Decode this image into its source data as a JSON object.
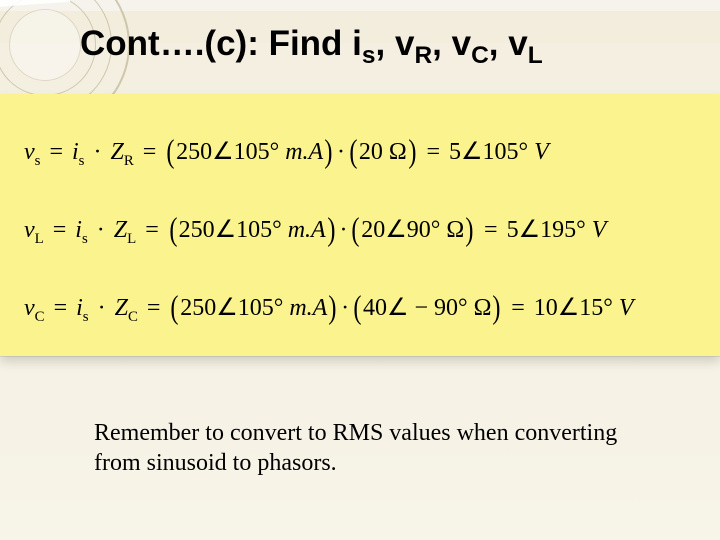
{
  "slide": {
    "background_top": "#f6f3ec",
    "background_bottom": "#f7f4e8",
    "decoration_ring_color": "rgba(160,150,110,0.45)"
  },
  "title": {
    "prefix": "Cont….(c): Find ",
    "var1": "i",
    "sub1": "s",
    "sep": ", ",
    "var2": "v",
    "sub2": "R",
    "var3": "v",
    "sub3": "C",
    "var4": "v",
    "sub4": "L",
    "fontsize": 35,
    "color": "#000000"
  },
  "eq_panel": {
    "background": "#faf38e",
    "fontsize": 24
  },
  "eq1": {
    "lhs_v": "v",
    "lhs_sub": "s",
    "dot": "·",
    "rhs1_v": "i",
    "rhs1_sub": "s",
    "rhs2_v": "Z",
    "rhs2_sub": "R",
    "p1_mag": "250",
    "p1_ang": "∠105°",
    "p1_unit": " m.A",
    "p2_mag": "20 ",
    "p2_unit": "Ω",
    "res_mag": "5",
    "res_ang": "∠105°",
    "res_unit": " V"
  },
  "eq2": {
    "lhs_v": "v",
    "lhs_sub": "L",
    "dot": "·",
    "rhs1_v": "i",
    "rhs1_sub": "s",
    "rhs2_v": "Z",
    "rhs2_sub": "L",
    "p1_mag": "250",
    "p1_ang": "∠105°",
    "p1_unit": " m.A",
    "p2_mag": "20",
    "p2_ang": "∠90°",
    "p2_unit": " Ω",
    "res_mag": "5",
    "res_ang": "∠195°",
    "res_unit": " V"
  },
  "eq3": {
    "lhs_v": "v",
    "lhs_sub": "C",
    "dot": "·",
    "rhs1_v": "i",
    "rhs1_sub": "s",
    "rhs2_v": "Z",
    "rhs2_sub": "C",
    "p1_mag": "250",
    "p1_ang": "∠105°",
    "p1_unit": " m.A",
    "p2_mag": "40",
    "p2_ang": "∠ − 90°",
    "p2_unit": " Ω",
    "res_mag": "10",
    "res_ang": "∠15°",
    "res_unit": " V"
  },
  "note": {
    "text": "Remember to convert to RMS values when converting from sinusoid to phasors.",
    "fontsize": 24
  }
}
